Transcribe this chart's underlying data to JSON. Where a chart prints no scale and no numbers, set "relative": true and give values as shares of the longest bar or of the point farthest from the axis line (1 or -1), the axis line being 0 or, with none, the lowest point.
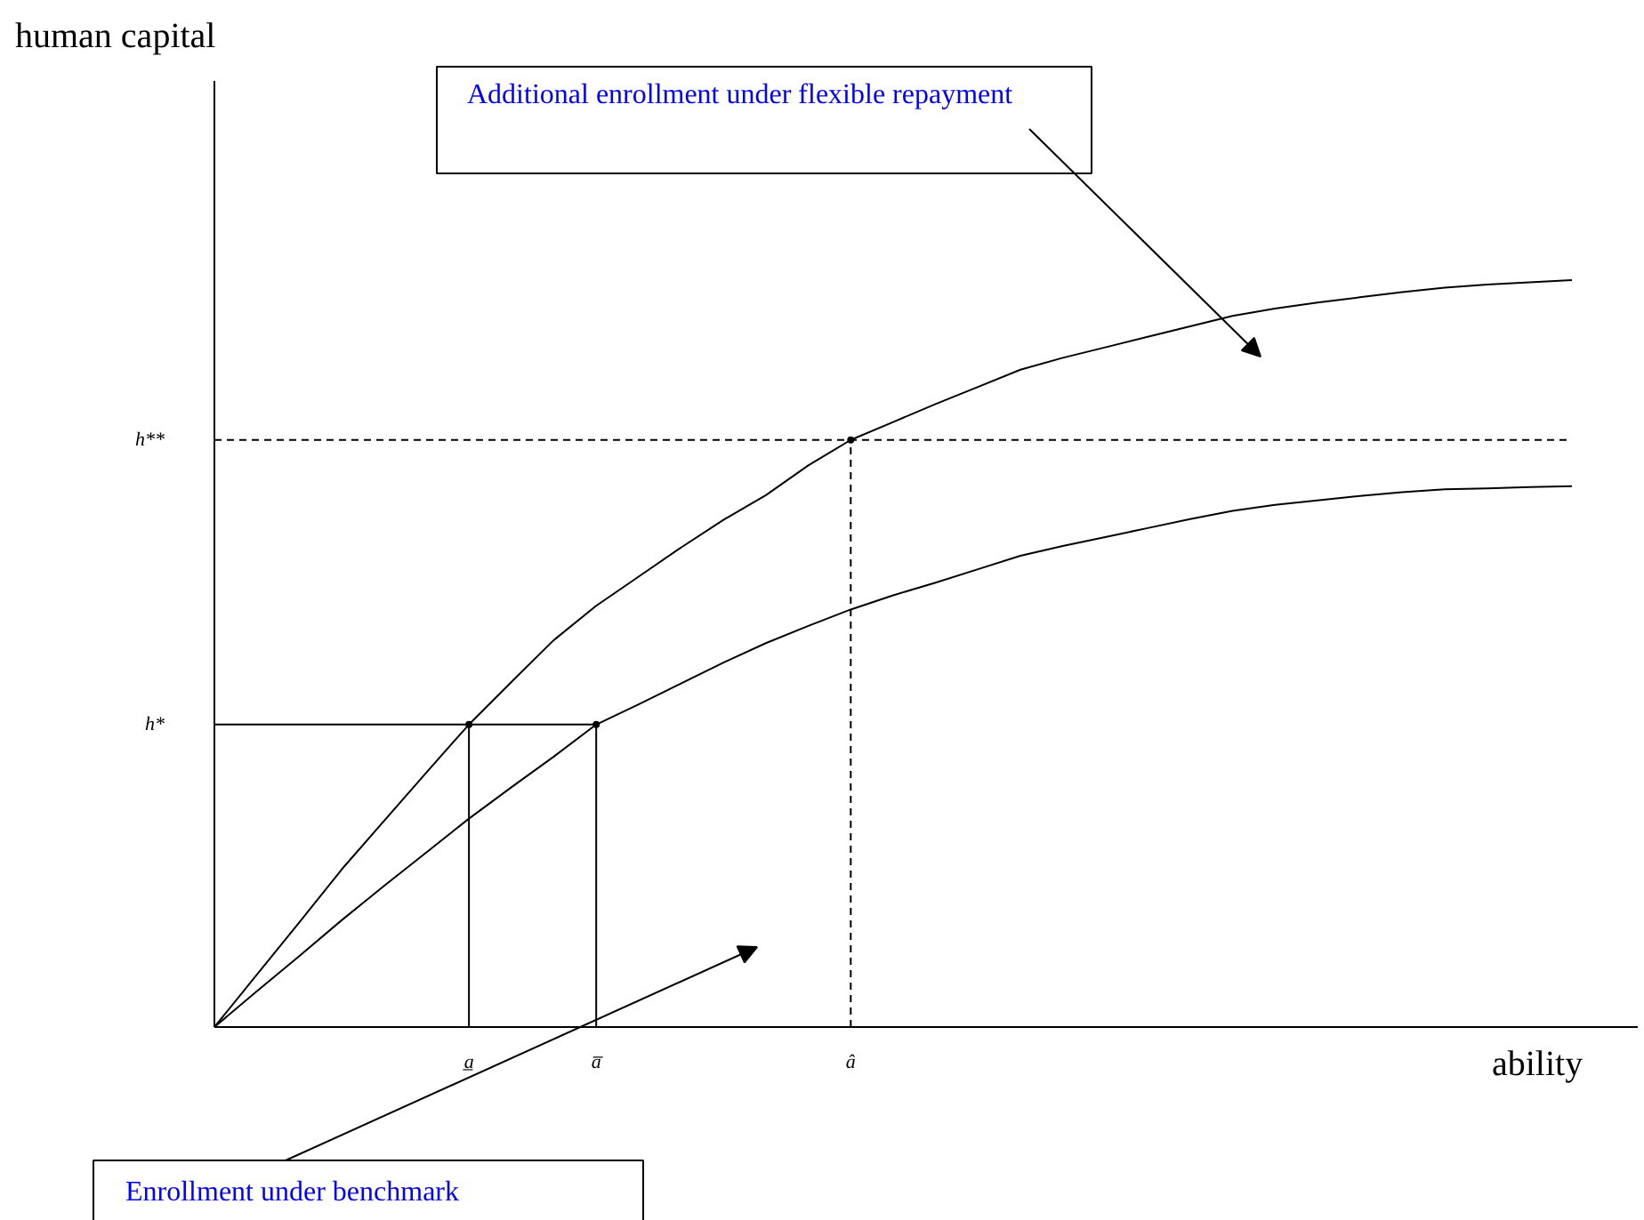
{
  "chart_data": {
    "type": "line",
    "relative": true,
    "xlabel": "ability",
    "categories": [
      null,
      null,
      null,
      null,
      null,
      null,
      "a̲",
      null,
      null,
      "a̅",
      null,
      null,
      null,
      null,
      null,
      "â",
      null,
      null,
      null,
      null,
      null,
      null,
      null,
      null,
      null,
      null,
      null,
      null,
      null,
      null,
      null,
      null,
      null
    ],
    "series": [
      {
        "color": "#000000",
        "line_style": "solid",
        "values": [
          0,
          0.07,
          0.14,
          0.211,
          0.276,
          0.341,
          0.405,
          0.462,
          0.518,
          0.564,
          0.603,
          0.642,
          0.679,
          0.712,
          0.752,
          0.786,
          0.81,
          0.834,
          0.857,
          0.88,
          0.896,
          0.91,
          0.924,
          0.938,
          0.952,
          0.962,
          0.97,
          0.977,
          0.984,
          0.99,
          0.994,
          0.997,
          1.0
        ]
      },
      {
        "color": "#000000",
        "line_style": "solid",
        "values": [
          0,
          0.048,
          0.095,
          0.143,
          0.189,
          0.234,
          0.279,
          0.321,
          0.362,
          0.405,
          0.432,
          0.46,
          0.488,
          0.514,
          0.537,
          0.559,
          0.578,
          0.595,
          0.613,
          0.631,
          0.644,
          0.656,
          0.668,
          0.68,
          0.691,
          0.699,
          0.705,
          0.711,
          0.716,
          0.72,
          0.721,
          0.723,
          0.724
        ]
      },
      {
        "color": "#000000",
        "line_style": "solid",
        "values": [
          0.405,
          0.405,
          0.405,
          0.405,
          0.405,
          0.405,
          0.405,
          0.405,
          0.405,
          0.405,
          null,
          null,
          null,
          null,
          null,
          null,
          null,
          null,
          null,
          null,
          null,
          null,
          null,
          null,
          null,
          null,
          null,
          null,
          null,
          null,
          null,
          null,
          null
        ]
      },
      {
        "color": "#000000",
        "line_style": "dashed",
        "values": [
          0.786,
          0.786,
          0.786,
          0.786,
          0.786,
          0.786,
          0.786,
          0.786,
          0.786,
          0.786,
          0.786,
          0.786,
          0.786,
          0.786,
          0.786,
          0.786,
          0.786,
          0.786,
          0.786,
          0.786,
          0.786,
          0.786,
          0.786,
          0.786,
          0.786,
          0.786,
          0.786,
          0.786,
          0.786,
          0.786,
          0.786,
          0.786,
          0.786
        ]
      },
      {
        "type": "lollipop",
        "color": "#000000",
        "line_style": "solid",
        "values": [
          null,
          null,
          null,
          null,
          null,
          null,
          0.405,
          null,
          null,
          0.405,
          null,
          null,
          null,
          null,
          null,
          null,
          null,
          null,
          null,
          null,
          null,
          null,
          null,
          null,
          null,
          null,
          null,
          null,
          null,
          null,
          null,
          null,
          null
        ]
      },
      {
        "type": "lollipop",
        "color": "#000000",
        "line_style": "dashed",
        "values": [
          null,
          null,
          null,
          null,
          null,
          null,
          null,
          null,
          null,
          null,
          null,
          null,
          null,
          null,
          null,
          0.786,
          null,
          null,
          null,
          null,
          null,
          null,
          null,
          null,
          null,
          null,
          null,
          null,
          null,
          null,
          null,
          null,
          null
        ]
      }
    ],
    "annotations": [
      "Additional enrollment under flexible repayment",
      "Enrollment under benchmark",
      "h**",
      "h*",
      "human capital"
    ]
  }
}
